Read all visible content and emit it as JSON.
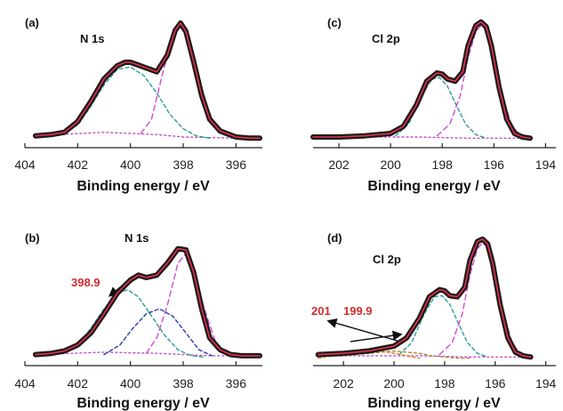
{
  "chart_data": [
    {
      "type": "line",
      "panel": "(a)",
      "title": "N 1s",
      "xlabel": "Binding energy / eV",
      "ylabel": "",
      "xlim": [
        404,
        395
      ],
      "ylim": [
        0,
        1.05
      ],
      "xticks": [
        404,
        402,
        400,
        398,
        396
      ],
      "series": [
        {
          "role": "measured",
          "color": "#1a1a1a",
          "x": [
            403.6,
            403,
            402.5,
            402,
            401.5,
            401,
            400.5,
            400.2,
            400,
            399.5,
            399,
            398.6,
            398.3,
            398.1,
            397.9,
            397.6,
            397.3,
            397,
            396.6,
            396,
            395.5,
            395.1
          ],
          "y": [
            0.04,
            0.05,
            0.07,
            0.16,
            0.33,
            0.52,
            0.63,
            0.66,
            0.66,
            0.62,
            0.58,
            0.72,
            0.93,
            0.99,
            0.92,
            0.66,
            0.38,
            0.18,
            0.08,
            0.03,
            0.02,
            0.02
          ]
        },
        {
          "role": "fit",
          "color": "#e0304a",
          "x": [
            403.6,
            403,
            402.5,
            402,
            401.5,
            401,
            400.5,
            400.2,
            400,
            399.5,
            399,
            398.6,
            398.3,
            398.1,
            397.9,
            397.6,
            397.3,
            397,
            396.6,
            396,
            395.5,
            395.1
          ],
          "y": [
            0.04,
            0.05,
            0.07,
            0.16,
            0.33,
            0.52,
            0.63,
            0.66,
            0.66,
            0.62,
            0.58,
            0.72,
            0.93,
            0.99,
            0.92,
            0.66,
            0.38,
            0.18,
            0.08,
            0.03,
            0.02,
            0.02
          ]
        },
        {
          "role": "component",
          "color": "#2a9d9a",
          "dash": "4,3",
          "x": [
            402.8,
            402,
            401.5,
            401,
            400.5,
            400,
            399.5,
            399,
            398.5,
            398,
            397.5,
            397
          ],
          "y": [
            0.06,
            0.13,
            0.29,
            0.47,
            0.6,
            0.62,
            0.55,
            0.4,
            0.22,
            0.1,
            0.04,
            0.02
          ]
        },
        {
          "role": "component",
          "color": "#d04ad6",
          "dash": "6,4",
          "x": [
            399.6,
            399.2,
            398.8,
            398.4,
            398.1,
            397.8,
            397.4,
            397,
            396.6,
            396.2
          ],
          "y": [
            0.06,
            0.18,
            0.55,
            0.88,
            0.96,
            0.84,
            0.52,
            0.22,
            0.08,
            0.03
          ]
        },
        {
          "role": "background",
          "color": "#c055c8",
          "dash": "2,3",
          "x": [
            403.6,
            401,
            399,
            398,
            396,
            395.1
          ],
          "y": [
            0.04,
            0.07,
            0.05,
            0.03,
            0.02,
            0.02
          ]
        }
      ]
    },
    {
      "type": "line",
      "panel": "(c)",
      "title": "Cl 2p",
      "xlabel": "Binding energy / eV",
      "ylabel": "",
      "xlim": [
        203,
        193.6
      ],
      "ylim": [
        0,
        1.05
      ],
      "xticks": [
        202,
        200,
        198,
        196,
        194
      ],
      "series": [
        {
          "role": "measured",
          "color": "#1a1a1a",
          "x": [
            203,
            202,
            201,
            200,
            199.5,
            199,
            198.6,
            198.2,
            198,
            197.8,
            197.5,
            197.2,
            197,
            196.7,
            196.5,
            196.3,
            196.1,
            195.8,
            195.5,
            195.2,
            194.9,
            194.6
          ],
          "y": [
            0.03,
            0.03,
            0.04,
            0.06,
            0.12,
            0.3,
            0.5,
            0.57,
            0.56,
            0.52,
            0.5,
            0.58,
            0.8,
            0.97,
            1.0,
            0.96,
            0.8,
            0.45,
            0.18,
            0.06,
            0.03,
            0.02
          ]
        },
        {
          "role": "fit",
          "color": "#e0304a",
          "x": [
            203,
            202,
            201,
            200,
            199.5,
            199,
            198.6,
            198.2,
            198,
            197.8,
            197.5,
            197.2,
            197,
            196.7,
            196.5,
            196.3,
            196.1,
            195.8,
            195.5,
            195.2,
            194.9,
            194.6
          ],
          "y": [
            0.03,
            0.03,
            0.04,
            0.06,
            0.12,
            0.3,
            0.5,
            0.57,
            0.56,
            0.52,
            0.5,
            0.58,
            0.8,
            0.97,
            1.0,
            0.96,
            0.8,
            0.45,
            0.18,
            0.06,
            0.03,
            0.02
          ]
        },
        {
          "role": "component",
          "color": "#2a9d9a",
          "dash": "4,3",
          "x": [
            199.8,
            199.3,
            198.8,
            198.4,
            198.1,
            197.8,
            197.5,
            197.1,
            196.7,
            196.3
          ],
          "y": [
            0.04,
            0.14,
            0.38,
            0.52,
            0.53,
            0.46,
            0.32,
            0.14,
            0.05,
            0.02
          ]
        },
        {
          "role": "component",
          "color": "#d04ad6",
          "dash": "6,4",
          "x": [
            198.2,
            197.7,
            197.3,
            197,
            196.7,
            196.5,
            196.3,
            196,
            195.7,
            195.3,
            194.9
          ],
          "y": [
            0.04,
            0.14,
            0.38,
            0.7,
            0.92,
            0.97,
            0.93,
            0.72,
            0.4,
            0.12,
            0.03
          ]
        },
        {
          "role": "background",
          "color": "#c055c8",
          "dash": "2,3",
          "x": [
            203,
            199,
            197,
            194.6
          ],
          "y": [
            0.03,
            0.03,
            0.02,
            0.02
          ]
        }
      ]
    },
    {
      "type": "line",
      "panel": "(b)",
      "title": "N 1s",
      "xlabel": "Binding energy / eV",
      "ylabel": "",
      "xlim": [
        404,
        395
      ],
      "ylim": [
        0,
        1.05
      ],
      "xticks": [
        404,
        402,
        400,
        398,
        396
      ],
      "annotations": [
        {
          "text": "398.9",
          "x": 398.9
        }
      ],
      "series": [
        {
          "role": "measured",
          "color": "#1a1a1a",
          "x": [
            403.6,
            403,
            402.5,
            402,
            401.5,
            401,
            400.5,
            400,
            399.7,
            399.4,
            399,
            398.6,
            398.2,
            397.9,
            397.6,
            397.3,
            397,
            396.6,
            396.2,
            395.8,
            395.4,
            395.1
          ],
          "y": [
            0.04,
            0.05,
            0.07,
            0.12,
            0.22,
            0.38,
            0.55,
            0.66,
            0.7,
            0.68,
            0.7,
            0.8,
            0.92,
            0.91,
            0.72,
            0.42,
            0.18,
            0.08,
            0.04,
            0.03,
            0.03,
            0.03
          ]
        },
        {
          "role": "fit",
          "color": "#e0304a",
          "x": [
            403.6,
            403,
            402.5,
            402,
            401.5,
            401,
            400.5,
            400,
            399.7,
            399.4,
            399,
            398.6,
            398.2,
            397.9,
            397.6,
            397.3,
            397,
            396.6,
            396.2,
            395.8,
            395.4,
            395.1
          ],
          "y": [
            0.04,
            0.05,
            0.07,
            0.12,
            0.22,
            0.38,
            0.55,
            0.66,
            0.7,
            0.68,
            0.7,
            0.8,
            0.92,
            0.91,
            0.72,
            0.42,
            0.18,
            0.08,
            0.04,
            0.03,
            0.03,
            0.03
          ]
        },
        {
          "role": "component",
          "color": "#2a9d9a",
          "dash": "4,3",
          "x": [
            402.5,
            402,
            401.5,
            401,
            400.5,
            400.1,
            399.7,
            399.2,
            398.7,
            398.2,
            397.7,
            397.2
          ],
          "y": [
            0.06,
            0.12,
            0.26,
            0.42,
            0.55,
            0.58,
            0.52,
            0.36,
            0.2,
            0.08,
            0.03,
            0.02
          ]
        },
        {
          "role": "component",
          "color": "#2a3caa",
          "dash": "4,3",
          "x": [
            401,
            400.4,
            399.9,
            399.4,
            398.9,
            398.4,
            397.9,
            397.4,
            396.9
          ],
          "y": [
            0.04,
            0.12,
            0.26,
            0.38,
            0.42,
            0.36,
            0.22,
            0.08,
            0.03
          ]
        },
        {
          "role": "component",
          "color": "#d04ad6",
          "dash": "6,4",
          "x": [
            399.4,
            399,
            398.6,
            398.2,
            397.9,
            397.6,
            397.2,
            396.8,
            396.4,
            396
          ],
          "y": [
            0.05,
            0.18,
            0.45,
            0.8,
            0.88,
            0.75,
            0.42,
            0.16,
            0.05,
            0.03
          ]
        },
        {
          "role": "background",
          "color": "#c055c8",
          "dash": "2,3",
          "x": [
            403.6,
            401,
            399,
            397,
            395.1
          ],
          "y": [
            0.04,
            0.06,
            0.05,
            0.03,
            0.03
          ]
        }
      ]
    },
    {
      "type": "line",
      "panel": "(d)",
      "title": "Cl 2p",
      "xlabel": "Binding energy / eV",
      "ylabel": "",
      "xlim": [
        203.2,
        193.6
      ],
      "ylim": [
        0,
        1.05
      ],
      "xticks": [
        202,
        200,
        198,
        196,
        194
      ],
      "annotations": [
        {
          "text": "201",
          "x": 201
        },
        {
          "text": "199.9",
          "x": 199.9
        }
      ],
      "series": [
        {
          "role": "measured",
          "color": "#1a1a1a",
          "x": [
            203,
            202,
            201,
            200,
            199.5,
            199,
            198.6,
            198.2,
            198,
            197.8,
            197.5,
            197.2,
            197,
            196.7,
            196.5,
            196.3,
            196.1,
            195.8,
            195.5,
            195.2,
            194.9,
            194.6
          ],
          "y": [
            0.04,
            0.05,
            0.07,
            0.11,
            0.18,
            0.34,
            0.52,
            0.58,
            0.57,
            0.53,
            0.52,
            0.6,
            0.82,
            0.98,
            1.0,
            0.96,
            0.8,
            0.45,
            0.18,
            0.06,
            0.03,
            0.02
          ]
        },
        {
          "role": "fit",
          "color": "#e0304a",
          "x": [
            203,
            202,
            201,
            200,
            199.5,
            199,
            198.6,
            198.2,
            198,
            197.8,
            197.5,
            197.2,
            197,
            196.7,
            196.5,
            196.3,
            196.1,
            195.8,
            195.5,
            195.2,
            194.9,
            194.6
          ],
          "y": [
            0.04,
            0.05,
            0.07,
            0.11,
            0.18,
            0.34,
            0.52,
            0.58,
            0.57,
            0.53,
            0.52,
            0.6,
            0.82,
            0.98,
            1.0,
            0.96,
            0.8,
            0.45,
            0.18,
            0.06,
            0.03,
            0.02
          ]
        },
        {
          "role": "component",
          "color": "#2a9d9a",
          "dash": "4,3",
          "x": [
            199.8,
            199.3,
            198.8,
            198.4,
            198.1,
            197.8,
            197.5,
            197.1,
            196.7,
            196.3
          ],
          "y": [
            0.04,
            0.14,
            0.38,
            0.52,
            0.53,
            0.46,
            0.32,
            0.14,
            0.05,
            0.02
          ]
        },
        {
          "role": "component",
          "color": "#d04ad6",
          "dash": "6,4",
          "x": [
            198.2,
            197.7,
            197.3,
            197,
            196.7,
            196.5,
            196.3,
            196,
            195.7,
            195.3,
            194.9
          ],
          "y": [
            0.04,
            0.14,
            0.38,
            0.7,
            0.92,
            0.97,
            0.93,
            0.72,
            0.4,
            0.12,
            0.03
          ]
        },
        {
          "role": "component",
          "color": "#b08a2c",
          "dash": "3,3",
          "x": [
            203,
            202,
            201,
            200.5,
            200,
            199.5,
            199,
            198.5,
            198,
            197.5,
            197
          ],
          "y": [
            0.02,
            0.03,
            0.05,
            0.06,
            0.07,
            0.06,
            0.05,
            0.03,
            0.02,
            0.01,
            0.01
          ]
        },
        {
          "role": "component",
          "color": "#e07a2a",
          "dash": "3,3",
          "x": [
            203,
            202.5,
            202,
            201.5,
            201,
            200.5,
            200,
            199.5,
            199
          ],
          "y": [
            0.01,
            0.03,
            0.05,
            0.07,
            0.08,
            0.07,
            0.05,
            0.03,
            0.01
          ]
        },
        {
          "role": "background",
          "color": "#c055c8",
          "dash": "2,3",
          "x": [
            203,
            199,
            197,
            194.6
          ],
          "y": [
            0.03,
            0.03,
            0.02,
            0.02
          ]
        }
      ]
    }
  ]
}
